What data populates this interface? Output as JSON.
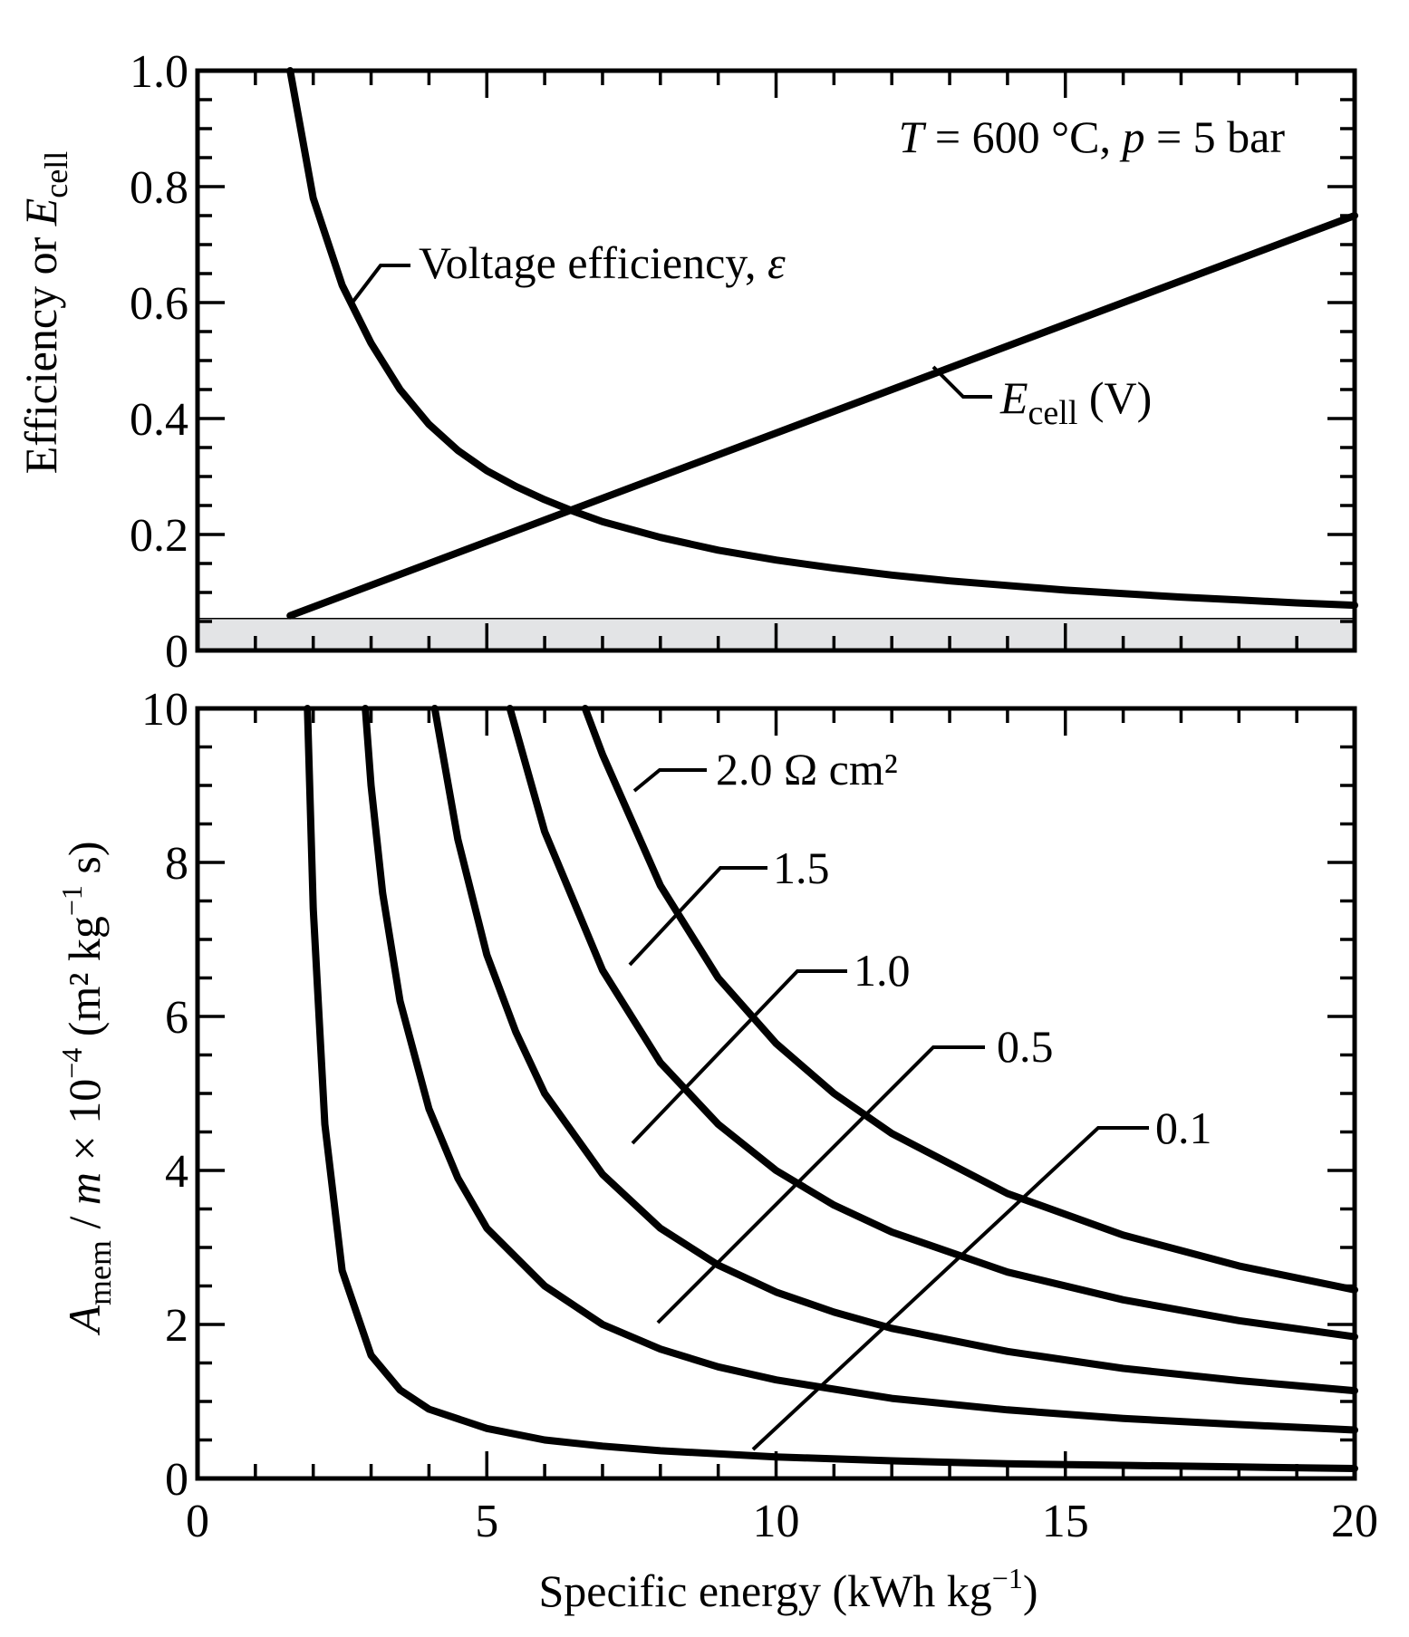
{
  "x_axis": {
    "label_prefix": "Specific energy (kWh kg",
    "label_sup": "−1",
    "label_suffix": ")",
    "range": [
      0,
      20
    ],
    "ticks": [
      "0",
      "5",
      "10",
      "15",
      "20"
    ]
  },
  "chart_data": [
    {
      "type": "line",
      "panel": "top",
      "ylabel": {
        "main": "Efficiency or ",
        "var": "E",
        "sub": "cell"
      },
      "xlim": [
        0,
        20
      ],
      "ylim": [
        0,
        1.0
      ],
      "yticks": [
        "0",
        "0.2",
        "0.4",
        "0.6",
        "0.8",
        "1.0"
      ],
      "annotation": {
        "var_T": "T",
        "mid": " = 600 °C, ",
        "var_p": "p",
        "end": " = 5 bar"
      },
      "shaded_band": {
        "y_from": 0,
        "y_to": 0.055,
        "color": "#e3e4e6"
      },
      "series": [
        {
          "name": "Voltage efficiency",
          "label_text": "Voltage efficiency, ",
          "label_symbol": "ε",
          "x": [
            1.6,
            2,
            2.5,
            3,
            3.5,
            4,
            4.5,
            5,
            5.5,
            6,
            6.5,
            7,
            8,
            9,
            10,
            11,
            12,
            13,
            14,
            15,
            16,
            17,
            18,
            19,
            20
          ],
          "y": [
            1.0,
            0.78,
            0.63,
            0.53,
            0.45,
            0.39,
            0.345,
            0.31,
            0.283,
            0.26,
            0.24,
            0.222,
            0.195,
            0.173,
            0.156,
            0.142,
            0.13,
            0.12,
            0.112,
            0.104,
            0.098,
            0.092,
            0.087,
            0.082,
            0.078
          ]
        },
        {
          "name": "Ecell (V)",
          "label_var": "E",
          "label_sub": "cell",
          "label_unit": " (V)",
          "x": [
            1.6,
            20
          ],
          "y": [
            0.06,
            0.75
          ]
        }
      ]
    },
    {
      "type": "line",
      "panel": "bottom",
      "ylabel": {
        "var_A": "A",
        "sub": "mem",
        "slash": " / ",
        "var_m": "m",
        "rest": " × 10",
        "sup": "−4",
        "unit": " (m² kg",
        "unit_sup": "−1",
        "unit_end": " s)"
      },
      "xlim": [
        0,
        20
      ],
      "ylim": [
        0,
        10
      ],
      "yticks": [
        "0",
        "2",
        "4",
        "6",
        "8",
        "10"
      ],
      "xlabel": "Specific energy (kWh kg−1)",
      "series": [
        {
          "name": "0.1",
          "label": "0.1",
          "x": [
            1.9,
            2,
            2.2,
            2.5,
            3,
            3.5,
            4,
            5,
            6,
            7,
            8,
            10,
            12,
            14,
            16,
            18,
            20
          ],
          "y": [
            10,
            7.4,
            4.6,
            2.7,
            1.6,
            1.15,
            0.9,
            0.65,
            0.5,
            0.42,
            0.36,
            0.28,
            0.23,
            0.19,
            0.17,
            0.15,
            0.13
          ]
        },
        {
          "name": "0.5",
          "label": "0.5",
          "x": [
            2.9,
            3,
            3.2,
            3.5,
            4,
            4.5,
            5,
            6,
            7,
            8,
            9,
            10,
            12,
            14,
            16,
            18,
            20
          ],
          "y": [
            10,
            9,
            7.6,
            6.2,
            4.8,
            3.9,
            3.25,
            2.5,
            2.0,
            1.68,
            1.45,
            1.28,
            1.04,
            0.89,
            0.78,
            0.7,
            0.63
          ]
        },
        {
          "name": "1.0",
          "label": "1.0",
          "x": [
            4.1,
            4.5,
            5,
            5.5,
            6,
            7,
            8,
            9,
            10,
            11,
            12,
            14,
            16,
            18,
            20
          ],
          "y": [
            10,
            8.3,
            6.8,
            5.8,
            5.0,
            3.95,
            3.25,
            2.77,
            2.42,
            2.16,
            1.95,
            1.65,
            1.43,
            1.27,
            1.14
          ]
        },
        {
          "name": "1.5",
          "label": "1.5",
          "x": [
            5.4,
            6,
            7,
            8,
            9,
            10,
            11,
            12,
            14,
            16,
            18,
            20
          ],
          "y": [
            10,
            8.4,
            6.6,
            5.4,
            4.6,
            4.0,
            3.55,
            3.2,
            2.68,
            2.32,
            2.05,
            1.84
          ]
        },
        {
          "name": "2.0 Ω cm²",
          "label": "2.0 Ω cm²",
          "x": [
            6.7,
            7,
            8,
            9,
            10,
            11,
            12,
            14,
            16,
            18,
            20
          ],
          "y": [
            10,
            9.4,
            7.7,
            6.5,
            5.65,
            5.0,
            4.48,
            3.7,
            3.16,
            2.76,
            2.45
          ]
        }
      ]
    }
  ]
}
